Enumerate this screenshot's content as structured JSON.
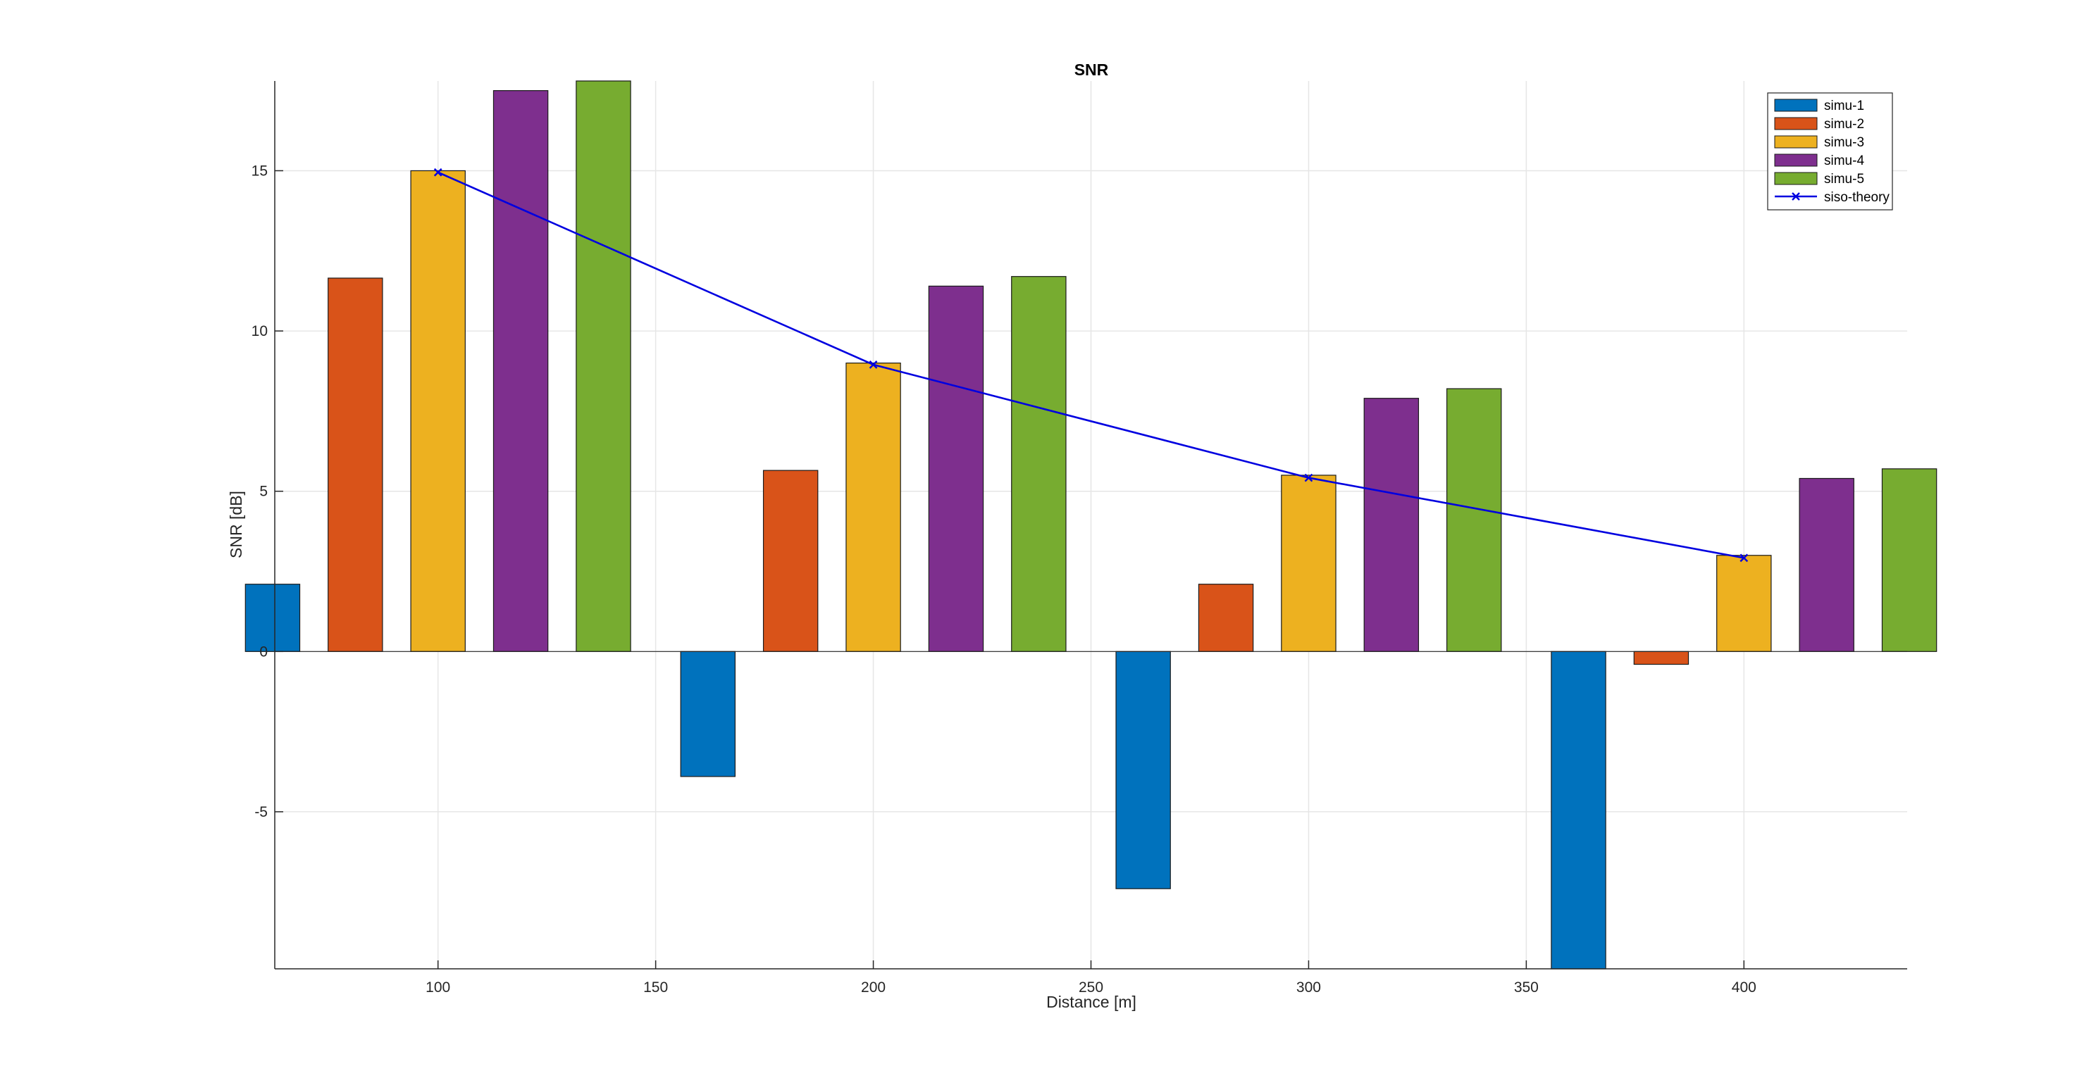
{
  "chart_data": {
    "type": "bar",
    "title": "SNR",
    "xlabel": "Distance [m]",
    "ylabel": "SNR [dB]",
    "xlim": [
      62.5,
      437.5
    ],
    "ylim": [
      -9.9,
      17.8
    ],
    "xticks": [
      100,
      150,
      200,
      250,
      300,
      350,
      400
    ],
    "yticks": [
      -5,
      0,
      5,
      10,
      15
    ],
    "grid": true,
    "legend_location": "top-right",
    "categories": [
      100,
      200,
      300,
      400
    ],
    "series": [
      {
        "name": "simu-1",
        "color": "#0072BD",
        "values": [
          2.1,
          -3.9,
          -7.4,
          -9.9
        ]
      },
      {
        "name": "simu-2",
        "color": "#D95319",
        "values": [
          11.65,
          5.65,
          2.1,
          -0.4
        ]
      },
      {
        "name": "simu-3",
        "color": "#EDB120",
        "values": [
          15.0,
          9.0,
          5.5,
          3.0
        ]
      },
      {
        "name": "simu-4",
        "color": "#7E2F8E",
        "values": [
          17.5,
          11.4,
          7.9,
          5.4
        ]
      },
      {
        "name": "simu-5",
        "color": "#77AC30",
        "values": [
          17.8,
          11.7,
          8.2,
          5.7
        ]
      }
    ],
    "line_series": [
      {
        "name": "siso-theory",
        "color": "#0000E0",
        "marker": "x",
        "x": [
          100,
          200,
          300,
          400
        ],
        "y": [
          14.95,
          8.95,
          5.42,
          2.92
        ]
      }
    ]
  }
}
